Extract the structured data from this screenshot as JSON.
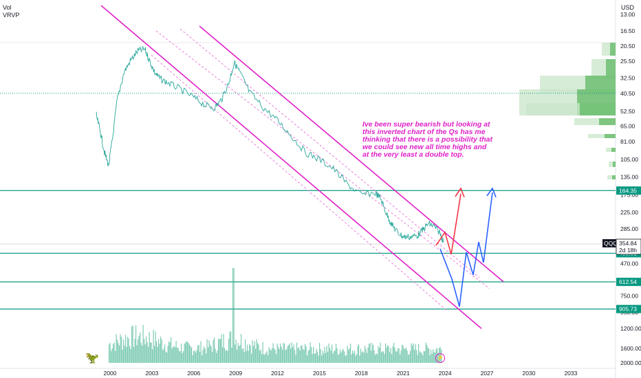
{
  "indicators": {
    "vol": "Vol",
    "vrvp": "VRVP"
  },
  "currency": "USD",
  "note": "Ive been super bearish but looking at this inverted chart of the Qs has me thinking that there is a possibility that we could see new all time highs and at the very least a double top.",
  "icons": {
    "logo": "tradingview-dino-icon",
    "flash": "lightning-icon"
  },
  "colors": {
    "price": "#26a69a",
    "volume": "#52b99a",
    "channel": "#e020c8",
    "level": "#089981",
    "red_path": "#f23645",
    "blue_path": "#2962ff",
    "vp": "#66bb6a"
  },
  "chart_data": {
    "type": "line",
    "title": "",
    "ylabel": "",
    "y_inverted": true,
    "y_scale": "log",
    "y_ticks": [
      "13.00",
      "16.50",
      "20.50",
      "25.50",
      "32.50",
      "40.50",
      "52.50",
      "65.00",
      "81.00",
      "105.00",
      "135.00",
      "175.00",
      "225.00",
      "285.00",
      "365.00",
      "470.00",
      "600.00",
      "750.00",
      "950.00",
      "1200.00",
      "1600.00",
      "2000.00"
    ],
    "x_ticks": [
      "2000",
      "2003",
      "2006",
      "2009",
      "2012",
      "2015",
      "2018",
      "2021",
      "2024",
      "2027",
      "2030",
      "2033"
    ],
    "series": [
      {
        "values_x": [
          1999.0,
          1999.3,
          1999.6,
          1999.9,
          2000.2,
          2000.5,
          2001.0,
          2001.5,
          2002.0,
          2002.5,
          2002.8,
          2003.2,
          2003.6,
          2004.2,
          2005.0,
          2006.0,
          2006.8,
          2007.5,
          2008.0,
          2008.5,
          2008.9,
          2009.3,
          2010.0,
          2011.0,
          2012.0,
          2013.0,
          2014.0,
          2015.0,
          2016.0,
          2017.0,
          2018.0,
          2019.0,
          2019.4,
          2019.8,
          2020.2,
          2020.6,
          2021.0,
          2021.5,
          2022.0,
          2022.4,
          2022.8,
          2023.2,
          2023.6,
          2023.9
        ],
        "values_y": [
          55,
          70,
          95,
          115,
          75,
          45,
          30,
          25,
          22,
          21.5,
          25,
          30,
          33,
          35,
          38,
          43,
          48,
          50,
          44,
          35,
          26,
          30,
          40,
          50,
          60,
          75,
          95,
          105,
          120,
          150,
          175,
          170,
          185,
          230,
          270,
          300,
          320,
          320,
          315,
          290,
          265,
          275,
          300,
          345
        ]
      }
    ],
    "levels": [
      {
        "label": "164.35",
        "value": 164.35
      },
      {
        "label": "405.51",
        "value": 405.51
      },
      {
        "label": "612.54",
        "value": 612.54
      },
      {
        "label": "905.73",
        "value": 905.73
      }
    ],
    "current": {
      "label": "QQQ",
      "value": "354.84",
      "countdown": "2d 18h"
    },
    "dotted_level": 40.5
  }
}
